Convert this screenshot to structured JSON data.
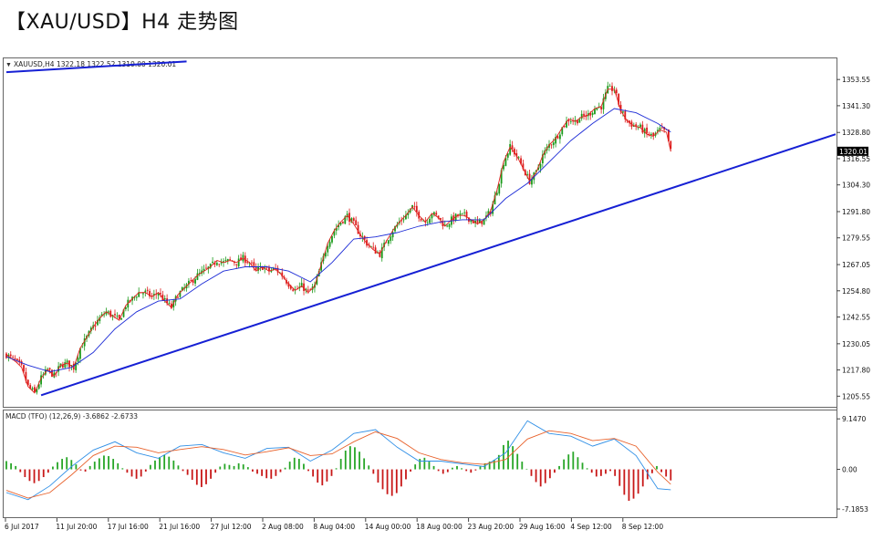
{
  "page": {
    "title": "【XAU/USD】H4 走势图"
  },
  "chart_data": [
    {
      "type": "candlestick",
      "symbol_header": "XAUUSD,H4  1322.18 1322.52 1319.00 1320.01",
      "current_price_label": "1320.01",
      "y_ticks": [
        "1353.55",
        "1341.30",
        "1328.80",
        "1316.55",
        "1304.30",
        "1291.80",
        "1279.55",
        "1267.05",
        "1254.80",
        "1242.55",
        "1230.05",
        "1217.80",
        "1205.55"
      ],
      "ylim": [
        1201,
        1363
      ],
      "x_ticks": [
        "6 Jul 2017",
        "11 Jul 20:00",
        "17 Jul 16:00",
        "21 Jul 16:00",
        "27 Jul 12:00",
        "2 Aug 08:00",
        "8 Aug 04:00",
        "14 Aug 00:00",
        "18 Aug 00:00",
        "23 Aug 20:00",
        "29 Aug 16:00",
        "4 Sep 12:00",
        "8 Sep 12:00"
      ],
      "close_path": [
        [
          0,
          1225
        ],
        [
          4,
          1222
        ],
        [
          7,
          1219
        ],
        [
          10,
          1210
        ],
        [
          13,
          1207
        ],
        [
          16,
          1214
        ],
        [
          19,
          1218
        ],
        [
          22,
          1215
        ],
        [
          25,
          1220
        ],
        [
          28,
          1221
        ],
        [
          31,
          1219
        ],
        [
          34,
          1228
        ],
        [
          37,
          1233
        ],
        [
          40,
          1238
        ],
        [
          43,
          1242
        ],
        [
          46,
          1245
        ],
        [
          49,
          1243
        ],
        [
          52,
          1241
        ],
        [
          55,
          1248
        ],
        [
          58,
          1251
        ],
        [
          61,
          1254
        ],
        [
          64,
          1254
        ],
        [
          67,
          1252
        ],
        [
          70,
          1254
        ],
        [
          73,
          1250
        ],
        [
          76,
          1247
        ],
        [
          79,
          1253
        ],
        [
          82,
          1256
        ],
        [
          85,
          1259
        ],
        [
          88,
          1262
        ],
        [
          91,
          1264
        ],
        [
          94,
          1266
        ],
        [
          97,
          1269
        ],
        [
          100,
          1268
        ],
        [
          103,
          1269
        ],
        [
          106,
          1268
        ],
        [
          109,
          1270
        ],
        [
          112,
          1268
        ],
        [
          115,
          1264
        ],
        [
          118,
          1266
        ],
        [
          121,
          1264
        ],
        [
          124,
          1265
        ],
        [
          127,
          1262
        ],
        [
          130,
          1258
        ],
        [
          133,
          1255
        ],
        [
          136,
          1257
        ],
        [
          139,
          1254
        ],
        [
          142,
          1257
        ],
        [
          145,
          1267
        ],
        [
          148,
          1277
        ],
        [
          151,
          1283
        ],
        [
          154,
          1287
        ],
        [
          157,
          1290
        ],
        [
          160,
          1286
        ],
        [
          163,
          1281
        ],
        [
          166,
          1277
        ],
        [
          169,
          1274
        ],
        [
          172,
          1272
        ],
        [
          175,
          1278
        ],
        [
          178,
          1283
        ],
        [
          181,
          1287
        ],
        [
          184,
          1290
        ],
        [
          187,
          1294
        ],
        [
          190,
          1290
        ],
        [
          193,
          1287
        ],
        [
          196,
          1291
        ],
        [
          199,
          1289
        ],
        [
          202,
          1285
        ],
        [
          205,
          1288
        ],
        [
          208,
          1290
        ],
        [
          211,
          1290
        ],
        [
          214,
          1288
        ],
        [
          217,
          1286
        ],
        [
          220,
          1288
        ],
        [
          223,
          1292
        ],
        [
          226,
          1302
        ],
        [
          229,
          1315
        ],
        [
          232,
          1322
        ],
        [
          235,
          1318
        ],
        [
          238,
          1312
        ],
        [
          241,
          1306
        ],
        [
          244,
          1310
        ],
        [
          247,
          1318
        ],
        [
          250,
          1323
        ],
        [
          253,
          1326
        ],
        [
          256,
          1331
        ],
        [
          259,
          1335
        ],
        [
          262,
          1334
        ],
        [
          265,
          1336
        ],
        [
          268,
          1337
        ],
        [
          271,
          1340
        ],
        [
          274,
          1341
        ],
        [
          277,
          1349
        ],
        [
          280,
          1349
        ],
        [
          283,
          1339
        ],
        [
          286,
          1334
        ],
        [
          289,
          1332
        ],
        [
          292,
          1331
        ],
        [
          295,
          1328
        ],
        [
          298,
          1327
        ],
        [
          301,
          1330
        ],
        [
          304,
          1329
        ],
        [
          306,
          1320
        ]
      ],
      "ma_path": [
        [
          0,
          1224
        ],
        [
          10,
          1220
        ],
        [
          20,
          1217
        ],
        [
          30,
          1219
        ],
        [
          40,
          1226
        ],
        [
          50,
          1237
        ],
        [
          60,
          1245
        ],
        [
          70,
          1250
        ],
        [
          80,
          1251
        ],
        [
          90,
          1258
        ],
        [
          100,
          1264
        ],
        [
          110,
          1266
        ],
        [
          120,
          1266
        ],
        [
          130,
          1264
        ],
        [
          140,
          1259
        ],
        [
          150,
          1268
        ],
        [
          160,
          1279
        ],
        [
          170,
          1280
        ],
        [
          180,
          1282
        ],
        [
          190,
          1285
        ],
        [
          200,
          1287
        ],
        [
          210,
          1288
        ],
        [
          220,
          1288
        ],
        [
          230,
          1298
        ],
        [
          240,
          1305
        ],
        [
          250,
          1315
        ],
        [
          260,
          1325
        ],
        [
          270,
          1333
        ],
        [
          280,
          1340
        ],
        [
          290,
          1338
        ],
        [
          300,
          1333
        ],
        [
          306,
          1329
        ]
      ],
      "support_trendline": [
        [
          16,
          1206
        ],
        [
          382,
          1328
        ]
      ],
      "upper_trendline": [
        [
          0,
          1357
        ],
        [
          83,
          1362
        ]
      ]
    },
    {
      "type": "macd",
      "header": "MACD (TFO) (12,26,9) -3.6862 -2.6733",
      "y_ticks": [
        "9.1470",
        "0.00",
        "-7.1853"
      ],
      "ylim": [
        -8.5,
        10.5
      ],
      "histogram": [
        1.5,
        1.1,
        0.6,
        -0.5,
        -1.4,
        -2.1,
        -2.5,
        -2.1,
        -1.4,
        -0.6,
        0.5,
        1.3,
        1.9,
        2.2,
        1.7,
        0.9,
        -0.2,
        -0.4,
        0.6,
        1.4,
        2.0,
        2.5,
        2.4,
        1.9,
        1.1,
        0.2,
        -0.6,
        -1.3,
        -1.7,
        -1.3,
        -0.4,
        0.8,
        1.6,
        2.2,
        2.6,
        2.3,
        1.6,
        0.7,
        -0.3,
        -1.0,
        -1.9,
        -2.8,
        -3.2,
        -2.7,
        -1.7,
        -0.6,
        0.5,
        1.0,
        0.8,
        0.6,
        1.1,
        0.9,
        0.4,
        -0.4,
        -0.8,
        -1.2,
        -1.6,
        -1.7,
        -1.2,
        -0.5,
        0.3,
        1.4,
        2.1,
        1.9,
        1.0,
        -0.3,
        -1.3,
        -2.4,
        -2.9,
        -2.2,
        -1.2,
        0.2,
        1.9,
        3.4,
        4.2,
        4.0,
        3.2,
        2.0,
        0.7,
        -0.8,
        -2.4,
        -3.6,
        -4.5,
        -4.8,
        -4.3,
        -3.1,
        -1.8,
        -0.4,
        0.9,
        1.9,
        2.1,
        1.4,
        0.6,
        -0.3,
        -0.8,
        -0.5,
        0.3,
        0.6,
        0.2,
        -0.3,
        -0.6,
        -0.2,
        0.5,
        1.1,
        1.4,
        1.7,
        2.6,
        4.4,
        5.2,
        4.2,
        2.8,
        1.4,
        0.1,
        -1.2,
        -2.3,
        -3.1,
        -2.5,
        -1.6,
        -0.6,
        0.6,
        1.8,
        2.7,
        3.2,
        2.2,
        1.2,
        0.2,
        -0.6,
        -1.3,
        -1.2,
        -0.8,
        -0.3,
        -1.2,
        -3.0,
        -4.6,
        -5.7,
        -5.3,
        -4.4,
        -3.1,
        -1.8,
        -0.7,
        0.6,
        -0.5,
        -1.3,
        -2.0
      ],
      "macd_line": [
        [
          0,
          -4.2
        ],
        [
          10,
          -5.5
        ],
        [
          20,
          -3.0
        ],
        [
          30,
          0.5
        ],
        [
          40,
          3.5
        ],
        [
          50,
          5.0
        ],
        [
          60,
          3.0
        ],
        [
          70,
          2.0
        ],
        [
          80,
          4.2
        ],
        [
          90,
          4.5
        ],
        [
          100,
          3.0
        ],
        [
          110,
          2.0
        ],
        [
          120,
          3.8
        ],
        [
          130,
          4.0
        ],
        [
          140,
          1.5
        ],
        [
          150,
          3.5
        ],
        [
          160,
          6.5
        ],
        [
          170,
          7.2
        ],
        [
          180,
          4.0
        ],
        [
          190,
          1.5
        ],
        [
          200,
          1.5
        ],
        [
          210,
          1.0
        ],
        [
          220,
          0.5
        ],
        [
          230,
          3.0
        ],
        [
          240,
          8.8
        ],
        [
          250,
          6.5
        ],
        [
          260,
          6.0
        ],
        [
          270,
          4.2
        ],
        [
          280,
          5.5
        ],
        [
          290,
          2.5
        ],
        [
          300,
          -3.5
        ],
        [
          306,
          -3.7
        ]
      ],
      "signal_line": [
        [
          0,
          -3.8
        ],
        [
          10,
          -5.2
        ],
        [
          20,
          -4.2
        ],
        [
          30,
          -1.0
        ],
        [
          40,
          2.5
        ],
        [
          50,
          4.2
        ],
        [
          60,
          4.0
        ],
        [
          70,
          3.0
        ],
        [
          80,
          3.6
        ],
        [
          90,
          4.1
        ],
        [
          100,
          3.6
        ],
        [
          110,
          2.6
        ],
        [
          120,
          3.2
        ],
        [
          130,
          3.9
        ],
        [
          140,
          2.5
        ],
        [
          150,
          2.8
        ],
        [
          160,
          5.0
        ],
        [
          170,
          6.8
        ],
        [
          180,
          5.6
        ],
        [
          190,
          3.0
        ],
        [
          200,
          1.8
        ],
        [
          210,
          1.2
        ],
        [
          220,
          0.9
        ],
        [
          230,
          1.8
        ],
        [
          240,
          5.5
        ],
        [
          250,
          7.0
        ],
        [
          260,
          6.5
        ],
        [
          270,
          5.2
        ],
        [
          280,
          5.6
        ],
        [
          290,
          4.2
        ],
        [
          300,
          -0.5
        ],
        [
          306,
          -2.7
        ]
      ]
    }
  ],
  "colors": {
    "bull_candle": "#1a9a1a",
    "bear_candle": "#dd1b1b",
    "close_line": "#e0231f",
    "ma_line": "#1c2bd6",
    "trendline": "#1620d4",
    "hist_up": "#27a627",
    "hist_down": "#c81818",
    "macd_line": "#2f8fe6",
    "signal_line": "#e8622c"
  }
}
